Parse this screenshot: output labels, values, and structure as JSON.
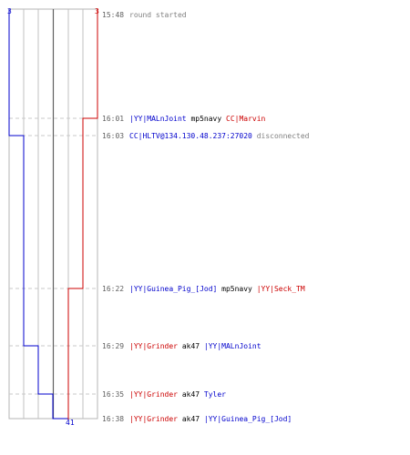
{
  "teams": {
    "blue": {
      "color": "#0000cc",
      "start_count": "3"
    },
    "red": {
      "color": "#cc0000",
      "start_count": "3"
    }
  },
  "end_count": "41",
  "events": [
    {
      "time": "15:48",
      "parts": [
        {
          "text": "round started",
          "color": "#808080"
        }
      ]
    },
    {
      "time": "16:01",
      "parts": [
        {
          "text": "|YY|MALnJoint",
          "color": "#0000cc"
        },
        {
          "text": "mp5navy",
          "color": "#000000"
        },
        {
          "text": "CC|Marvin",
          "color": "#cc0000"
        }
      ]
    },
    {
      "time": "16:03",
      "parts": [
        {
          "text": "CC|HLTV@134.130.48.237:27020",
          "color": "#0000cc"
        },
        {
          "text": "disconnected",
          "color": "#808080"
        }
      ]
    },
    {
      "time": "16:22",
      "parts": [
        {
          "text": "|YY|Guinea_Pig_[Jod]",
          "color": "#0000cc"
        },
        {
          "text": "mp5navy",
          "color": "#000000"
        },
        {
          "text": "|YY|Seck_TM",
          "color": "#cc0000"
        }
      ]
    },
    {
      "time": "16:29",
      "parts": [
        {
          "text": "|YY|Grinder",
          "color": "#cc0000"
        },
        {
          "text": "ak47",
          "color": "#000000"
        },
        {
          "text": "|YY|MALnJoint",
          "color": "#0000cc"
        }
      ]
    },
    {
      "time": "16:35",
      "parts": [
        {
          "text": "|YY|Grinder",
          "color": "#cc0000"
        },
        {
          "text": "ak47",
          "color": "#000000"
        },
        {
          "text": "Tyler",
          "color": "#0000cc"
        }
      ]
    },
    {
      "time": "16:38",
      "parts": [
        {
          "text": "|YY|Grinder",
          "color": "#cc0000"
        },
        {
          "text": "ak47",
          "color": "#000000"
        },
        {
          "text": "|YY|Guinea_Pig_[Jod]",
          "color": "#0000cc"
        }
      ]
    }
  ]
}
